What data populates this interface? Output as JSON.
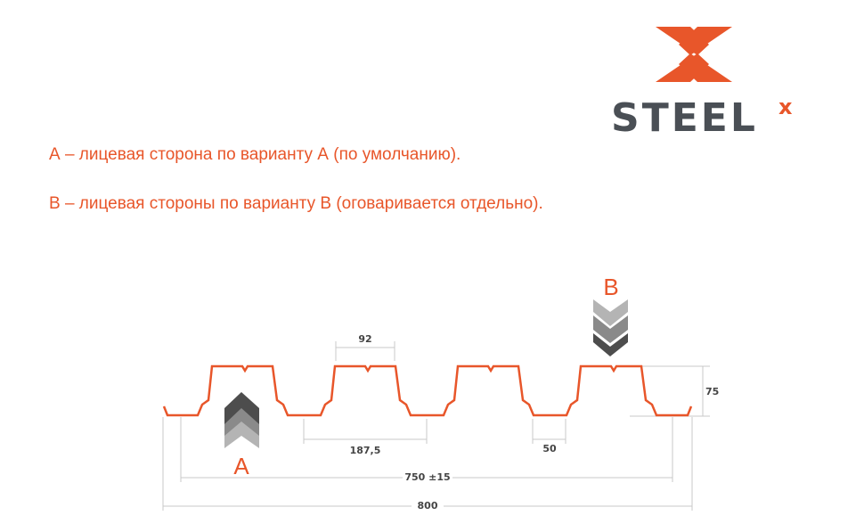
{
  "logo": {
    "text": "STEEL",
    "superscript": "x"
  },
  "descriptions": [
    "А – лицевая сторона по варианту А (по умолчанию).",
    "В – лицевая стороны по варианту В (оговаривается отдельно)."
  ],
  "diagram": {
    "side_a_label": "А",
    "side_b_label": "В",
    "dimensions": {
      "rib_top_width": "92",
      "pitch": "187,5",
      "valley_width": "50",
      "height": "75",
      "useful_width": "750 ±15",
      "total_width": "800"
    }
  },
  "colors": {
    "accent": "#e8562a",
    "logo_text": "#4a4f55",
    "dimension_lines": "#c8c8c8"
  }
}
